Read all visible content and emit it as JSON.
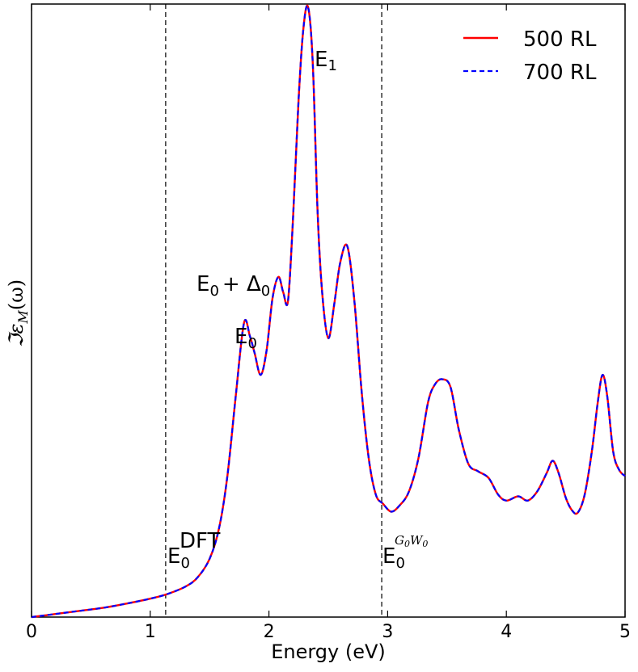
{
  "chart_data": {
    "type": "line",
    "xlabel": "Energy (eV)",
    "ylabel": "ℑε",
    "ylabel_sub": "M",
    "ylabel_arg": "(ω)",
    "xlim": [
      0,
      5
    ],
    "ylim": [
      0,
      1
    ],
    "x_ticks": [
      {
        "value": 0,
        "label": "0"
      },
      {
        "value": 1,
        "label": "1"
      },
      {
        "value": 2,
        "label": "2"
      },
      {
        "value": 3,
        "label": "3"
      },
      {
        "value": 4,
        "label": "4"
      },
      {
        "value": 5,
        "label": "5"
      }
    ],
    "grid": false,
    "legend_position": "top-right",
    "colors": {
      "red": "#ff0000",
      "blue": "#0000ff"
    },
    "series": [
      {
        "name": "500 RL",
        "color": "#ff0000",
        "style": "solid",
        "points_ref": "points"
      },
      {
        "name": "700 RL",
        "color": "#0000ff",
        "style": "dashed",
        "points_ref": "points"
      }
    ],
    "points": [
      [
        0.0,
        0.0
      ],
      [
        0.2,
        0.005
      ],
      [
        0.4,
        0.01
      ],
      [
        0.6,
        0.015
      ],
      [
        0.8,
        0.022
      ],
      [
        1.0,
        0.03
      ],
      [
        1.15,
        0.038
      ],
      [
        1.3,
        0.05
      ],
      [
        1.4,
        0.065
      ],
      [
        1.5,
        0.095
      ],
      [
        1.58,
        0.145
      ],
      [
        1.65,
        0.23
      ],
      [
        1.72,
        0.36
      ],
      [
        1.79,
        0.48
      ],
      [
        1.84,
        0.458
      ],
      [
        1.88,
        0.43
      ],
      [
        1.93,
        0.395
      ],
      [
        1.98,
        0.435
      ],
      [
        2.03,
        0.52
      ],
      [
        2.08,
        0.555
      ],
      [
        2.12,
        0.53
      ],
      [
        2.16,
        0.515
      ],
      [
        2.2,
        0.64
      ],
      [
        2.25,
        0.845
      ],
      [
        2.29,
        0.96
      ],
      [
        2.33,
        0.995
      ],
      [
        2.37,
        0.9
      ],
      [
        2.41,
        0.66
      ],
      [
        2.45,
        0.525
      ],
      [
        2.5,
        0.455
      ],
      [
        2.55,
        0.51
      ],
      [
        2.6,
        0.578
      ],
      [
        2.66,
        0.605
      ],
      [
        2.72,
        0.515
      ],
      [
        2.78,
        0.37
      ],
      [
        2.84,
        0.26
      ],
      [
        2.9,
        0.2
      ],
      [
        2.96,
        0.185
      ],
      [
        3.03,
        0.172
      ],
      [
        3.1,
        0.182
      ],
      [
        3.18,
        0.205
      ],
      [
        3.26,
        0.26
      ],
      [
        3.34,
        0.35
      ],
      [
        3.4,
        0.38
      ],
      [
        3.46,
        0.388
      ],
      [
        3.53,
        0.375
      ],
      [
        3.6,
        0.305
      ],
      [
        3.68,
        0.25
      ],
      [
        3.76,
        0.238
      ],
      [
        3.85,
        0.227
      ],
      [
        3.93,
        0.2
      ],
      [
        4.0,
        0.19
      ],
      [
        4.1,
        0.197
      ],
      [
        4.18,
        0.19
      ],
      [
        4.26,
        0.205
      ],
      [
        4.34,
        0.235
      ],
      [
        4.39,
        0.255
      ],
      [
        4.44,
        0.235
      ],
      [
        4.5,
        0.195
      ],
      [
        4.55,
        0.175
      ],
      [
        4.6,
        0.17
      ],
      [
        4.66,
        0.2
      ],
      [
        4.72,
        0.27
      ],
      [
        4.77,
        0.35
      ],
      [
        4.81,
        0.395
      ],
      [
        4.85,
        0.36
      ],
      [
        4.9,
        0.27
      ],
      [
        4.95,
        0.24
      ],
      [
        5.0,
        0.23
      ]
    ],
    "vlines": [
      {
        "x": 1.13,
        "style": "dashed",
        "color": "#000000"
      },
      {
        "x": 2.95,
        "style": "dashed",
        "color": "#000000"
      }
    ],
    "annotations": [
      {
        "id": "e1",
        "base": "E",
        "sub": "1",
        "x": 2.36,
        "y": 0.96
      },
      {
        "id": "e0d0",
        "base": "E",
        "sub": "0",
        "rest": "+ Δ",
        "rest_sub": "0",
        "x": 1.39,
        "y": 0.56
      },
      {
        "id": "e0",
        "base": "E",
        "sub": "0",
        "x": 1.71,
        "y": 0.465
      },
      {
        "id": "edft",
        "base": "E",
        "sub": "0",
        "sup": "DFT",
        "x": 1.14,
        "y": 0.09
      },
      {
        "id": "egw",
        "base": "E",
        "sub": "0",
        "sup_math": "G0W0",
        "x": 2.97,
        "y": 0.09
      }
    ]
  }
}
